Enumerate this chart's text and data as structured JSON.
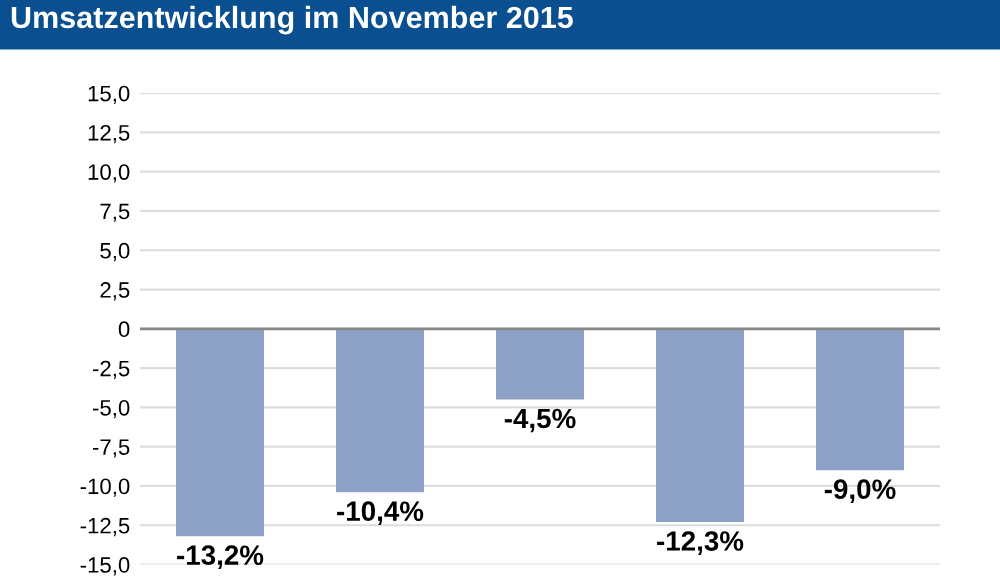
{
  "chart_data": {
    "type": "bar",
    "title": "Umsatzentwicklung im November 2015",
    "categories": [
      null,
      null,
      null,
      null,
      null
    ],
    "values": [
      -13.2,
      -10.4,
      -4.5,
      -12.3,
      -9.0
    ],
    "value_labels": [
      "-13,2%",
      "-10,4%",
      "-4,5%",
      "-12,3%",
      "-9,0%"
    ],
    "color": "#8da0c6",
    "ylim": [
      -15,
      15
    ],
    "yticks": [
      {
        "value": -15,
        "label": "-15,0"
      },
      {
        "value": -12.5,
        "label": "-12,5"
      },
      {
        "value": -10,
        "label": "-10,0"
      },
      {
        "value": -7.5,
        "label": "-7,5"
      },
      {
        "value": -5,
        "label": "-5,0"
      },
      {
        "value": -2.5,
        "label": "-2,5"
      },
      0,
      {
        "value": 2.5,
        "label": "2,5"
      },
      {
        "value": 5,
        "label": "5,0"
      },
      {
        "value": 7.5,
        "label": "7,5"
      },
      {
        "value": 10,
        "label": "10,0"
      },
      {
        "value": 12.5,
        "label": "12,5"
      },
      {
        "value": 15,
        "label": "15,0"
      }
    ],
    "grid": "y",
    "tick_labels": "y"
  }
}
